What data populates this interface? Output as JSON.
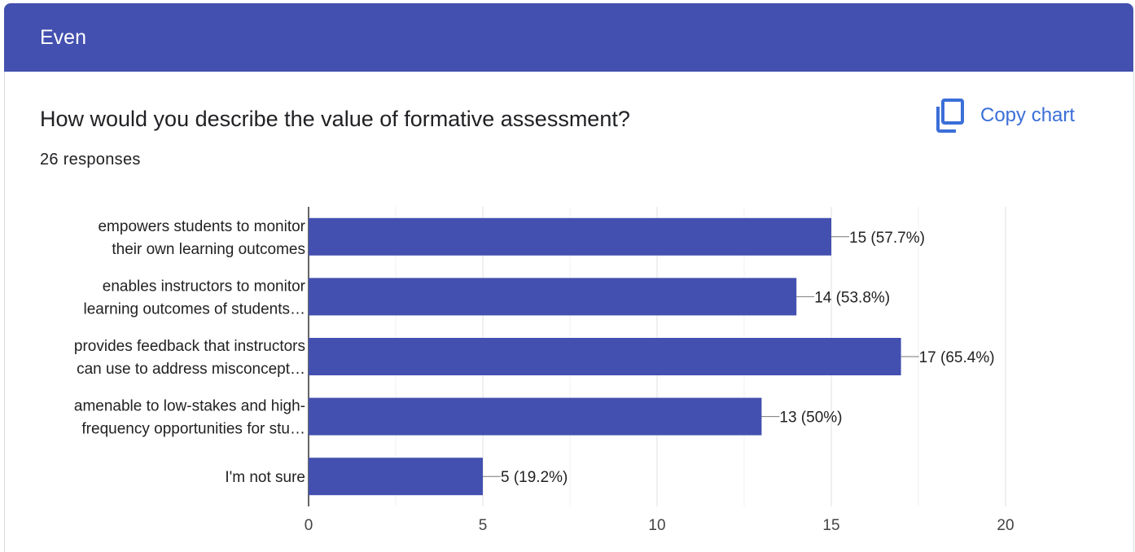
{
  "header": {
    "title": "Even"
  },
  "question": {
    "title": "How would you describe the value of formative assessment?",
    "responses": "26 responses"
  },
  "actions": {
    "copy_label": "Copy chart",
    "copy_icon": "copy-icon"
  },
  "colors": {
    "bar": "#4350af",
    "header": "#4350af",
    "accent": "#3b6fd8"
  },
  "chart_data": {
    "type": "bar",
    "orientation": "horizontal",
    "categories": [
      [
        "empowers students to monitor",
        "their own learning outcomes"
      ],
      [
        "enables instructors to monitor",
        "learning outcomes of students…"
      ],
      [
        "provides feedback that instructors",
        "can use to address misconcept…"
      ],
      [
        "amenable to low-stakes and high-",
        "frequency opportunities for stu…"
      ],
      [
        "I'm not sure"
      ]
    ],
    "values": [
      15,
      14,
      17,
      13,
      5
    ],
    "data_labels": [
      "15 (57.7%)",
      "14 (53.8%)",
      "17 (65.4%)",
      "13 (50%)",
      "5 (19.2%)"
    ],
    "xlim": [
      0,
      20
    ],
    "xticks": [
      0,
      5,
      10,
      15,
      20
    ],
    "grid": true
  }
}
